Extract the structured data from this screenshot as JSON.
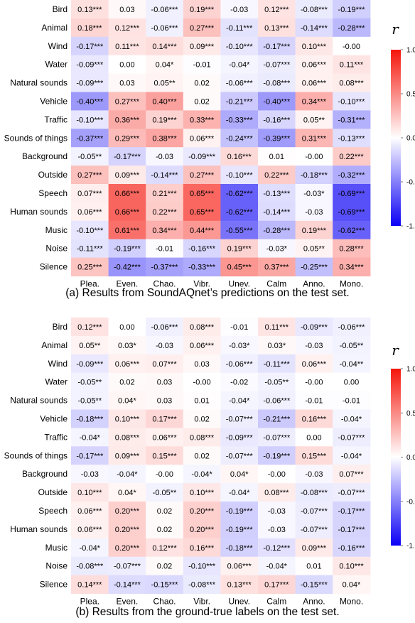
{
  "chart_data": [
    {
      "type": "heatmap",
      "caption": "(a) Results from SoundAQnet’s predictions on the test set.",
      "rows": [
        "Bird",
        "Animal",
        "Wind",
        "Water",
        "Natural sounds",
        "Vehicle",
        "Traffic",
        "Sounds of things",
        "Background",
        "Outside",
        "Speech",
        "Human sounds",
        "Music",
        "Noise",
        "Silence"
      ],
      "columns": [
        "Plea.",
        "Even.",
        "Chao.",
        "Vibr.",
        "Unev.",
        "Calm",
        "Anno.",
        "Mono."
      ],
      "cells": [
        [
          "0.13***",
          "0.03",
          "-0.06***",
          "0.19***",
          "-0.03",
          "0.12***",
          "-0.08***",
          "-0.19***"
        ],
        [
          "0.18***",
          "0.12***",
          "-0.06***",
          "0.27***",
          "-0.11***",
          "0.13***",
          "-0.14***",
          "-0.28***"
        ],
        [
          "-0.17***",
          "0.11***",
          "0.14***",
          "0.09***",
          "-0.10***",
          "-0.17***",
          "0.10***",
          "-0.00"
        ],
        [
          "-0.09***",
          "0.00",
          "0.04*",
          "-0.01",
          "-0.04*",
          "-0.07***",
          "0.06***",
          "0.11***"
        ],
        [
          "-0.09***",
          "0.03",
          "0.05**",
          "0.02",
          "-0.06***",
          "-0.08***",
          "0.06***",
          "0.08***"
        ],
        [
          "-0.40***",
          "0.27***",
          "0.40***",
          "0.02",
          "-0.21***",
          "-0.40***",
          "0.34***",
          "-0.10***"
        ],
        [
          "-0.10***",
          "0.36***",
          "0.19***",
          "0.33***",
          "-0.33***",
          "-0.16***",
          "0.05**",
          "-0.31***"
        ],
        [
          "-0.37***",
          "0.29***",
          "0.38***",
          "0.06***",
          "-0.24***",
          "-0.39***",
          "0.31***",
          "-0.13***"
        ],
        [
          "-0.05**",
          "-0.17***",
          "-0.03",
          "-0.09***",
          "0.16***",
          "0.01",
          "-0.00",
          "0.22***"
        ],
        [
          "0.27***",
          "0.09***",
          "-0.14***",
          "0.27***",
          "-0.10***",
          "0.22***",
          "-0.18***",
          "-0.32***"
        ],
        [
          "0.07***",
          "0.66***",
          "0.21***",
          "0.65***",
          "-0.62***",
          "-0.13***",
          "-0.03*",
          "-0.69***"
        ],
        [
          "0.06***",
          "0.66***",
          "0.22***",
          "0.65***",
          "-0.62***",
          "-0.14***",
          "-0.03",
          "-0.69***"
        ],
        [
          "-0.10***",
          "0.61***",
          "0.34***",
          "0.44***",
          "-0.55***",
          "-0.28***",
          "0.19***",
          "-0.62***"
        ],
        [
          "-0.11***",
          "-0.19***",
          "-0.01",
          "-0.16***",
          "0.19***",
          "-0.03*",
          "0.05**",
          "0.28***"
        ],
        [
          "0.25***",
          "-0.42***",
          "-0.37***",
          "-0.33***",
          "0.45***",
          "0.37***",
          "-0.25***",
          "0.34***"
        ]
      ],
      "colorbar": {
        "label": "r",
        "range": [
          -1.0,
          1.0
        ],
        "ticks": [
          "1.0",
          "0.5",
          "0.0",
          "-0.5",
          "-1.0"
        ],
        "colors": [
          "#0b00f5",
          "#ffffff",
          "#f5150b"
        ]
      }
    },
    {
      "type": "heatmap",
      "caption": "(b) Results from the ground-true labels on the test set.",
      "rows": [
        "Bird",
        "Animal",
        "Wind",
        "Water",
        "Natural sounds",
        "Vehicle",
        "Traffic",
        "Sounds of things",
        "Background",
        "Outside",
        "Speech",
        "Human sounds",
        "Music",
        "Noise",
        "Silence"
      ],
      "columns": [
        "Plea.",
        "Even.",
        "Chao.",
        "Vibr.",
        "Unev.",
        "Calm",
        "Anno.",
        "Mono."
      ],
      "cells": [
        [
          "0.12***",
          "0.00",
          "-0.06***",
          "0.08***",
          "-0.01",
          "0.11***",
          "-0.09***",
          "-0.06***"
        ],
        [
          "0.05**",
          "0.03*",
          "-0.03",
          "0.06***",
          "-0.03*",
          "0.03*",
          "-0.03",
          "-0.05**"
        ],
        [
          "-0.09***",
          "0.06***",
          "0.07***",
          "0.03",
          "-0.06***",
          "-0.11***",
          "0.06***",
          "-0.04**"
        ],
        [
          "-0.05**",
          "0.02",
          "0.03",
          "-0.00",
          "-0.02",
          "-0.05**",
          "-0.00",
          "0.00"
        ],
        [
          "-0.05**",
          "0.04*",
          "0.03",
          "0.01",
          "-0.04*",
          "-0.06***",
          "-0.01",
          "-0.01"
        ],
        [
          "-0.18***",
          "0.10***",
          "0.17***",
          "0.02",
          "-0.07***",
          "-0.21***",
          "0.16***",
          "-0.04*"
        ],
        [
          "-0.04*",
          "0.08***",
          "0.06***",
          "0.08***",
          "-0.09***",
          "-0.07***",
          "0.00",
          "-0.07***"
        ],
        [
          "-0.17***",
          "0.09***",
          "0.15***",
          "0.02",
          "-0.07***",
          "-0.19***",
          "0.15***",
          "-0.04*"
        ],
        [
          "-0.03",
          "-0.04*",
          "-0.00",
          "-0.04*",
          "0.04*",
          "-0.00",
          "-0.03",
          "0.07***"
        ],
        [
          "0.10***",
          "0.04*",
          "-0.05**",
          "0.10***",
          "-0.04*",
          "0.08***",
          "-0.08***",
          "-0.07***"
        ],
        [
          "0.06***",
          "0.20***",
          "0.02",
          "0.20***",
          "-0.19***",
          "-0.03",
          "-0.07***",
          "-0.17***"
        ],
        [
          "0.06***",
          "0.20***",
          "0.02",
          "0.20***",
          "-0.19***",
          "-0.03",
          "-0.07***",
          "-0.17***"
        ],
        [
          "-0.04*",
          "0.20***",
          "0.12***",
          "0.16***",
          "-0.18***",
          "-0.12***",
          "0.09***",
          "-0.16***"
        ],
        [
          "-0.08***",
          "-0.07***",
          "0.02",
          "-0.10***",
          "0.06***",
          "-0.04*",
          "0.01",
          "0.10***"
        ],
        [
          "0.14***",
          "-0.14***",
          "-0.15***",
          "-0.08***",
          "0.13***",
          "0.17***",
          "-0.15***",
          "0.04*"
        ]
      ],
      "colorbar": {
        "label": "r",
        "range": [
          -1.0,
          1.0
        ],
        "ticks": [
          "1.0",
          "0.5",
          "0.0",
          "-0.5",
          "-1.0"
        ],
        "colors": [
          "#0b00f5",
          "#ffffff",
          "#f5150b"
        ]
      }
    }
  ]
}
